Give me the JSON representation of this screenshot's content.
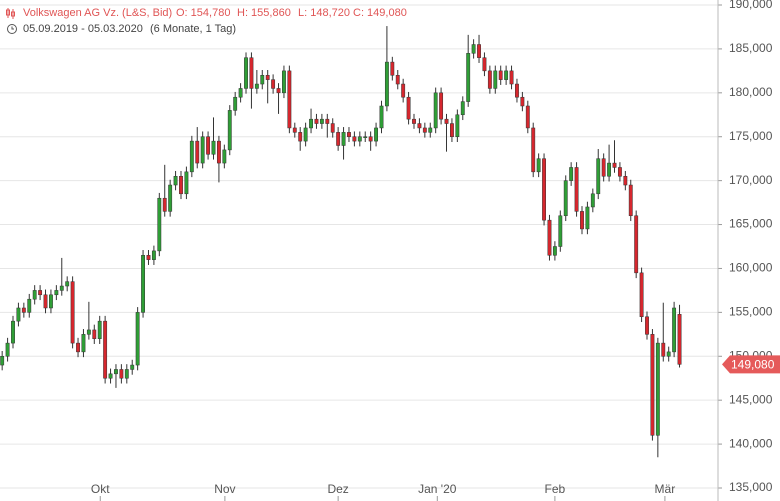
{
  "chart_data": {
    "type": "candlestick",
    "title": "Volkswagen AG Vz. (L&S, Bid)",
    "ohlc_labels": [
      "O: 154,780",
      "H: 155,860",
      "L: 148,720",
      "C: 149,080"
    ],
    "date_range": "05.09.2019 - 05.03.2020",
    "period": "(6 Monate, 1 Tag)",
    "last_label": "149,080",
    "up_color": "#2f9e36",
    "down_color": "#d6272e",
    "grid": true,
    "xlim": [
      -0.4,
      132.1
    ],
    "xticks": [
      {
        "value": 18.1,
        "label": "Okt"
      },
      {
        "value": 41.1,
        "label": "Nov"
      },
      {
        "value": 62,
        "label": "Dez"
      },
      {
        "value": 80.3,
        "label": "Jan '20"
      },
      {
        "value": 102,
        "label": "Feb"
      },
      {
        "value": 122.3,
        "label": "Mär"
      }
    ],
    "ylim": [
      135000,
      190000
    ],
    "yticks": [
      {
        "value": 135000,
        "label": "135,000"
      },
      {
        "value": 140000,
        "label": "140,000"
      },
      {
        "value": 145000,
        "label": "145,000"
      },
      {
        "value": 150000,
        "label": "150,000"
      },
      {
        "value": 155000,
        "label": "155,000"
      },
      {
        "value": 160000,
        "label": "160,000"
      },
      {
        "value": 165000,
        "label": "165,000"
      },
      {
        "value": 170000,
        "label": "170,000"
      },
      {
        "value": 175000,
        "label": "175,000"
      },
      {
        "value": 180000,
        "label": "180,000"
      },
      {
        "value": 185000,
        "label": "185,000"
      },
      {
        "value": 190000,
        "label": "190,000"
      }
    ],
    "open": [
      149000,
      150000,
      151500,
      154000,
      155500,
      155000,
      156500,
      157500,
      157000,
      155500,
      157000,
      157500,
      158000,
      158500,
      151500,
      150500,
      152500,
      153000,
      152000,
      154000,
      147500,
      148000,
      148500,
      147500,
      148500,
      149000,
      155000,
      161500,
      161000,
      162000,
      168000,
      166500,
      169500,
      170500,
      168500,
      171000,
      174500,
      172000,
      175000,
      173000,
      174500,
      172000,
      173500,
      178000,
      179500,
      180500,
      184000,
      180500,
      181000,
      182000,
      181500,
      180500,
      180000,
      182500,
      176000,
      175500,
      174500,
      176000,
      177000,
      176500,
      177000,
      176500,
      175500,
      174000,
      175500,
      175000,
      174500,
      175000,
      175000,
      174500,
      176000,
      178500,
      183500,
      182000,
      181000,
      179500,
      177000,
      176500,
      176000,
      175500,
      176000,
      180000,
      177000,
      176500,
      175000,
      177500,
      179000,
      184500,
      185500,
      184000,
      182500,
      180500,
      182500,
      181500,
      182500,
      181000,
      179500,
      178500,
      176000,
      171000,
      172500,
      165500,
      161500,
      162500,
      166000,
      170000,
      171500,
      166500,
      164500,
      167000,
      168500,
      172500,
      170500,
      172000,
      171500,
      170500,
      169500,
      166000,
      159500,
      154500,
      152500,
      141000,
      151500,
      150000,
      150500,
      154780
    ],
    "high": [
      150600,
      152100,
      154600,
      156100,
      156100,
      157100,
      158100,
      158100,
      157600,
      157600,
      158100,
      161200,
      159100,
      159100,
      152100,
      153100,
      156200,
      153600,
      154600,
      154600,
      148600,
      149100,
      149100,
      149100,
      149600,
      155600,
      162100,
      162100,
      162600,
      168600,
      171800,
      170100,
      171100,
      171100,
      171600,
      175100,
      176100,
      175600,
      175600,
      177200,
      175100,
      174100,
      178600,
      180100,
      181100,
      184600,
      184600,
      182600,
      182600,
      182600,
      182100,
      181100,
      183100,
      183100,
      176600,
      176100,
      176600,
      178200,
      177600,
      177600,
      177600,
      177100,
      176100,
      176100,
      176100,
      175600,
      175600,
      175600,
      175600,
      176600,
      179100,
      187600,
      184100,
      182600,
      181600,
      180100,
      177600,
      177100,
      176600,
      176600,
      180600,
      180600,
      177600,
      177100,
      178100,
      179600,
      186600,
      186100,
      186600,
      184600,
      183100,
      183100,
      183100,
      183100,
      183100,
      181600,
      180100,
      179100,
      176600,
      173100,
      173100,
      166100,
      163100,
      166600,
      170600,
      172100,
      172100,
      167100,
      167600,
      169100,
      173600,
      173100,
      174100,
      174600,
      172100,
      171100,
      170100,
      166600,
      160100,
      155100,
      153100,
      152100,
      156100,
      151100,
      156200,
      155860
    ],
    "low": [
      148400,
      149400,
      150900,
      153400,
      154400,
      154400,
      155900,
      156400,
      154900,
      154900,
      156400,
      156900,
      157400,
      150900,
      149900,
      149900,
      151900,
      151400,
      151400,
      146900,
      146900,
      146400,
      146900,
      146900,
      147900,
      148400,
      154400,
      160400,
      160400,
      161400,
      165900,
      165900,
      168900,
      167900,
      167900,
      170400,
      171400,
      171400,
      172400,
      172400,
      169800,
      171400,
      172900,
      177400,
      178900,
      179900,
      178200,
      179900,
      180400,
      178800,
      179900,
      177600,
      179400,
      175400,
      174900,
      173400,
      173900,
      175400,
      175900,
      175900,
      174900,
      174900,
      173400,
      172400,
      174400,
      173900,
      173900,
      174400,
      173400,
      173900,
      175400,
      177900,
      181400,
      180400,
      178900,
      176400,
      175900,
      175400,
      174900,
      174900,
      175400,
      176400,
      173300,
      174400,
      174400,
      176900,
      178400,
      183900,
      183400,
      181900,
      179900,
      179900,
      180900,
      180900,
      180400,
      178900,
      177900,
      175400,
      170400,
      170400,
      164900,
      160900,
      160900,
      161900,
      165400,
      169400,
      165900,
      163900,
      163900,
      166400,
      167900,
      169900,
      169900,
      170900,
      169900,
      168900,
      165400,
      158900,
      153900,
      151900,
      140400,
      138500,
      149400,
      149400,
      149900,
      148720
    ],
    "close": [
      150000,
      151500,
      154000,
      155500,
      155000,
      156500,
      157500,
      157000,
      155500,
      157000,
      157500,
      158000,
      158500,
      151500,
      150500,
      152500,
      153000,
      152000,
      154000,
      147500,
      148000,
      148500,
      147500,
      148500,
      149000,
      155000,
      161500,
      161000,
      162000,
      168000,
      166500,
      169500,
      170500,
      168500,
      171000,
      174500,
      172000,
      175000,
      173000,
      174500,
      172000,
      173500,
      178000,
      179500,
      180500,
      184000,
      180500,
      181000,
      182000,
      181500,
      180500,
      180000,
      182500,
      176000,
      175500,
      174500,
      176000,
      177000,
      176500,
      177000,
      176500,
      175500,
      174000,
      175500,
      175000,
      174500,
      175000,
      175000,
      174500,
      176000,
      178500,
      183500,
      182000,
      181000,
      179500,
      177000,
      176500,
      176000,
      175500,
      176000,
      180000,
      177000,
      176500,
      175000,
      177500,
      179000,
      184500,
      185500,
      184000,
      182500,
      180500,
      182500,
      181500,
      182500,
      181000,
      179500,
      178500,
      176000,
      171000,
      172500,
      165500,
      161500,
      162500,
      166000,
      170000,
      171500,
      166500,
      164500,
      167000,
      168500,
      172500,
      170500,
      172000,
      171500,
      170500,
      169500,
      166000,
      159500,
      154500,
      152500,
      141000,
      151500,
      150000,
      150500,
      155500,
      149080
    ]
  }
}
